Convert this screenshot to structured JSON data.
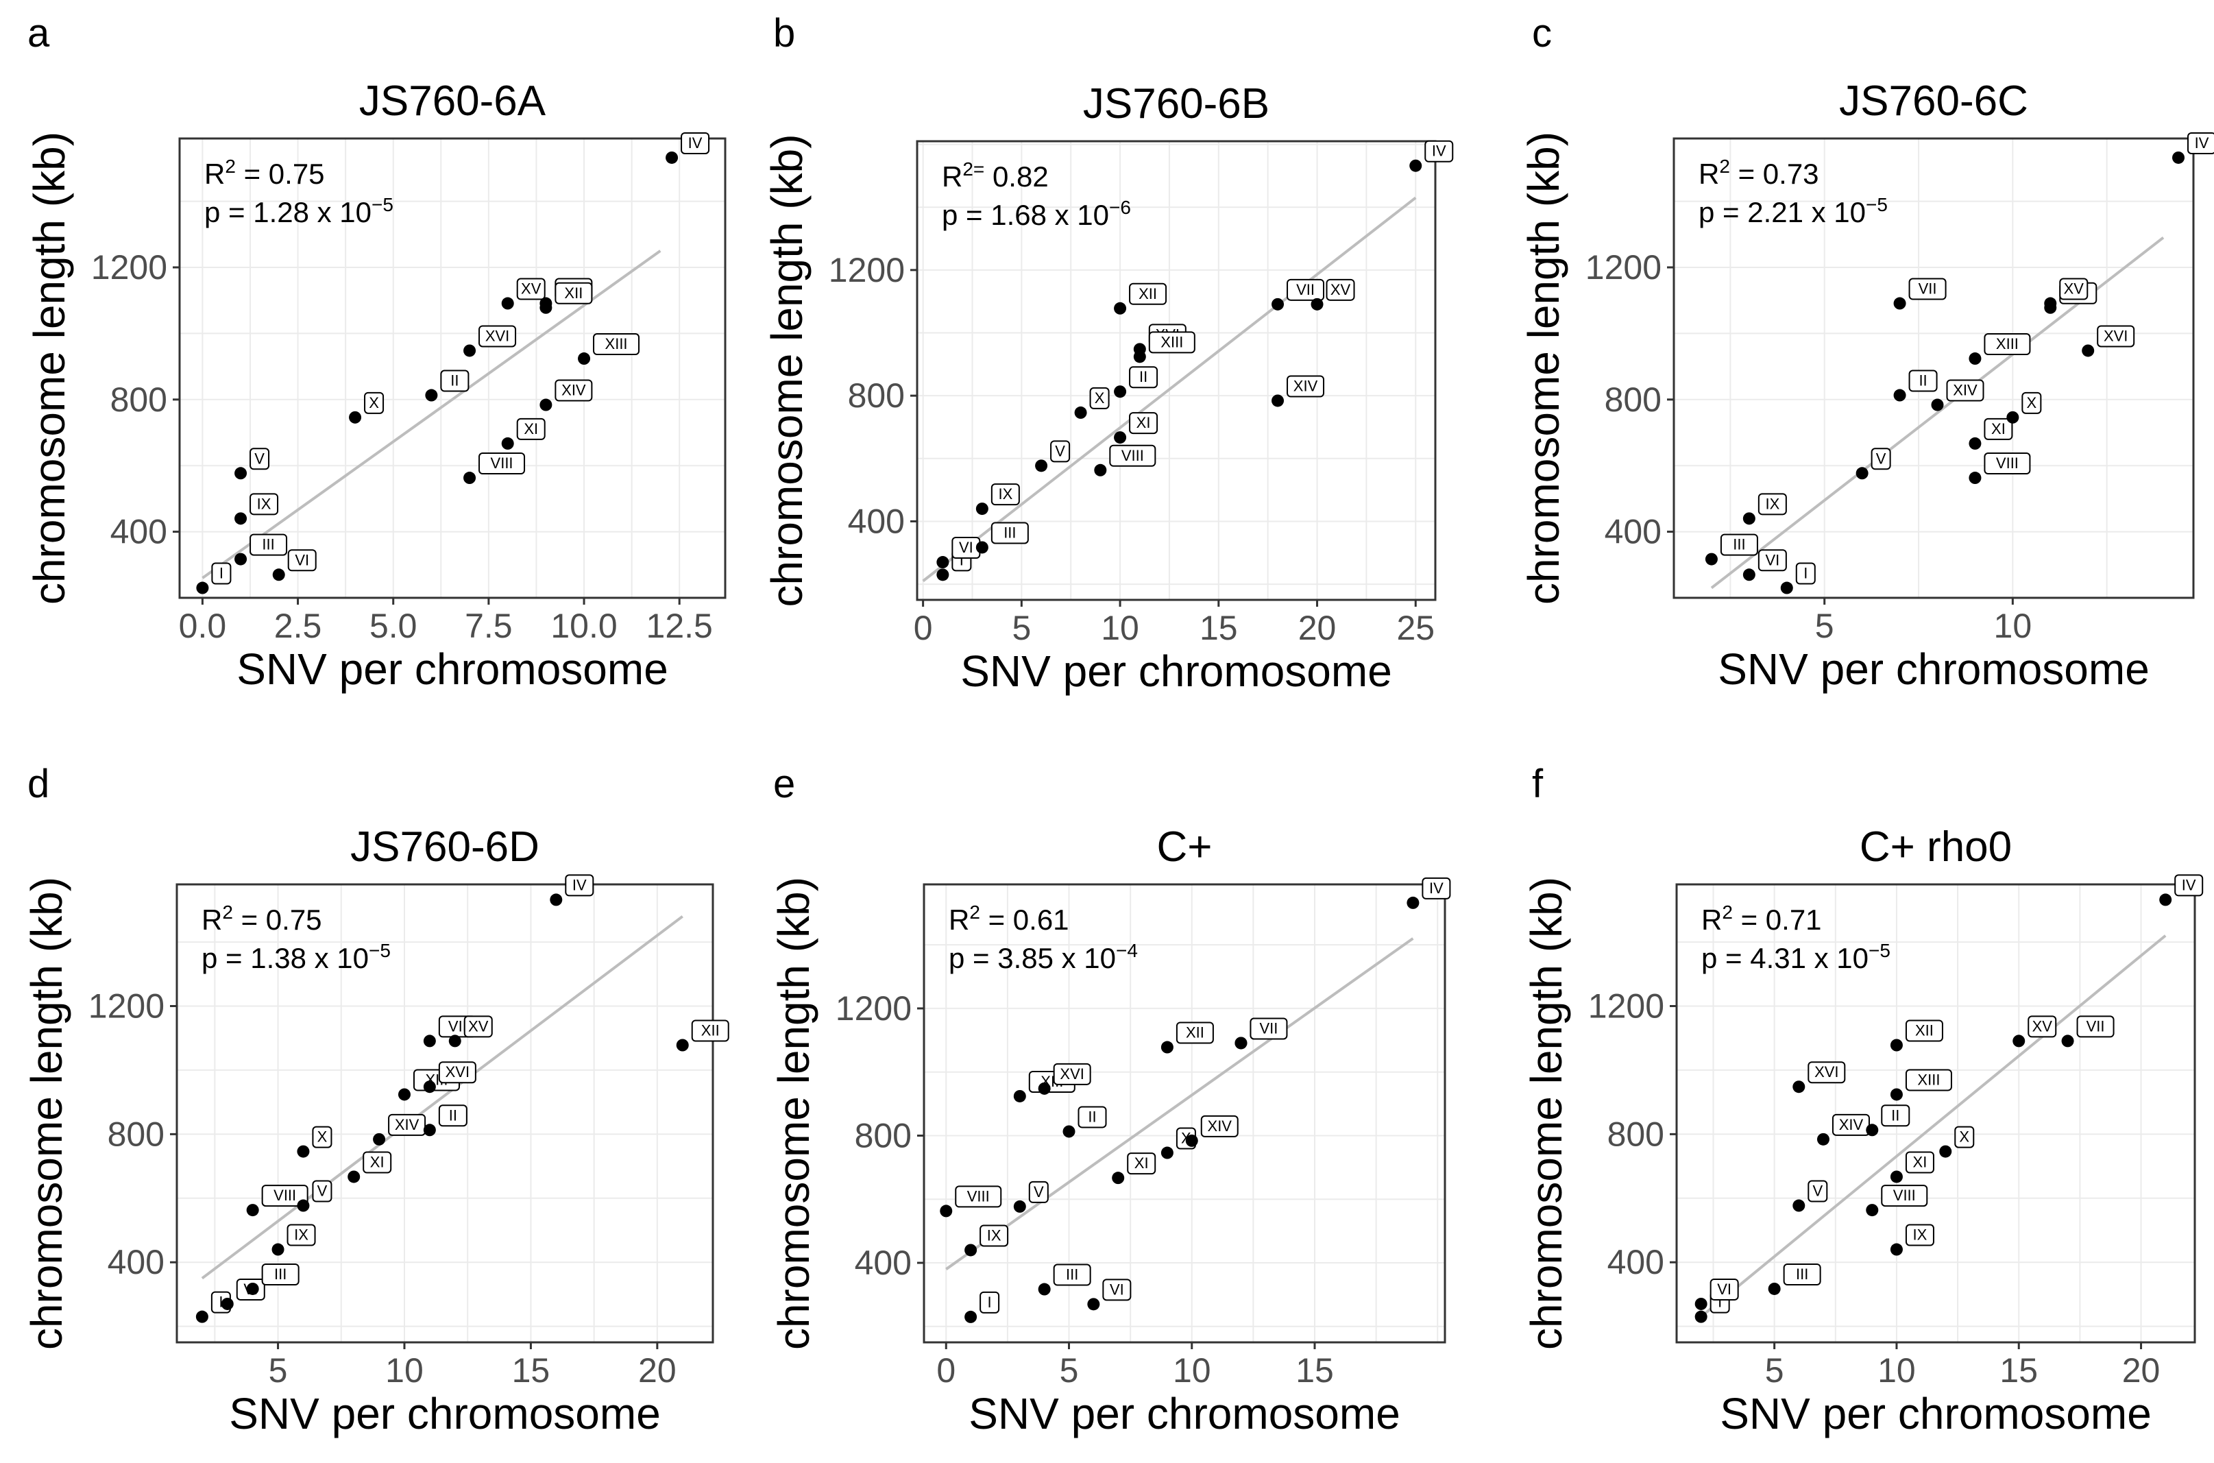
{
  "chart_data": [
    {
      "panel": "a",
      "type": "scatter",
      "title": "JS760-6A",
      "xlabel": "SNV per chromosome",
      "ylabel": "chromosome length (kb)",
      "xlim": [
        -0.6,
        13.7
      ],
      "ylim": [
        200,
        1590
      ],
      "xticks": [
        0,
        2.5,
        5,
        7.5,
        10,
        12.5
      ],
      "xtick_labels": [
        "0.0",
        "2.5",
        "5.0",
        "7.5",
        "10.0",
        "12.5"
      ],
      "yticks": [
        400,
        800,
        1200
      ],
      "ytick_labels": [
        "400",
        "800",
        "1200"
      ],
      "stats": {
        "r2_label": "R",
        "r2_value": "= 0.75",
        "p_label": "p = 1.28 x 10",
        "p_exp": "−5"
      },
      "fit": {
        "x0": 0,
        "y0": 260,
        "x1": 12,
        "y1": 1250
      },
      "points": [
        {
          "label": "I",
          "x": 0,
          "y": 230
        },
        {
          "label": "III",
          "x": 1,
          "y": 317
        },
        {
          "label": "VI",
          "x": 2,
          "y": 270
        },
        {
          "label": "IX",
          "x": 1,
          "y": 440
        },
        {
          "label": "V",
          "x": 1,
          "y": 577
        },
        {
          "label": "X",
          "x": 4,
          "y": 746
        },
        {
          "label": "II",
          "x": 6,
          "y": 813
        },
        {
          "label": "XVI",
          "x": 7,
          "y": 948
        },
        {
          "label": "VIII",
          "x": 7,
          "y": 563
        },
        {
          "label": "XV",
          "x": 8,
          "y": 1091
        },
        {
          "label": "XI",
          "x": 8,
          "y": 667
        },
        {
          "label": "XIV",
          "x": 9,
          "y": 784
        },
        {
          "label": "VII",
          "x": 9,
          "y": 1091
        },
        {
          "label": "XII",
          "x": 9,
          "y": 1078
        },
        {
          "label": "XIII",
          "x": 10,
          "y": 924
        },
        {
          "label": "IV",
          "x": 12.3,
          "y": 1532
        }
      ]
    },
    {
      "panel": "b",
      "type": "scatter",
      "title": "JS760-6B",
      "xlabel": "SNV per chromosome",
      "ylabel": "chromosome length (kb)",
      "xlim": [
        -0.3,
        26
      ],
      "ylim": [
        150,
        1610
      ],
      "xticks": [
        0,
        5,
        10,
        15,
        20,
        25
      ],
      "xtick_labels": [
        "0",
        "5",
        "10",
        "15",
        "20",
        "25"
      ],
      "yticks": [
        400,
        800,
        1200
      ],
      "ytick_labels": [
        "400",
        "800",
        "1200"
      ],
      "stats": {
        "r2_label": "R",
        "r2_value": " 0.82",
        "r2_sup": "2=",
        "p_label": "p = 1.68 x 10",
        "p_exp": "−6"
      },
      "fit": {
        "x0": 0,
        "y0": 210,
        "x1": 25,
        "y1": 1430
      },
      "points": [
        {
          "label": "I",
          "x": 1,
          "y": 230
        },
        {
          "label": "VI",
          "x": 1,
          "y": 270
        },
        {
          "label": "III",
          "x": 3,
          "y": 317
        },
        {
          "label": "IX",
          "x": 3,
          "y": 440
        },
        {
          "label": "V",
          "x": 6,
          "y": 577
        },
        {
          "label": "X",
          "x": 8,
          "y": 746
        },
        {
          "label": "VIII",
          "x": 9,
          "y": 563
        },
        {
          "label": "II",
          "x": 10,
          "y": 813
        },
        {
          "label": "XI",
          "x": 10,
          "y": 667
        },
        {
          "label": "XII",
          "x": 10,
          "y": 1078
        },
        {
          "label": "XVI",
          "x": 11,
          "y": 948
        },
        {
          "label": "XIII",
          "x": 11,
          "y": 924
        },
        {
          "label": "VII",
          "x": 18,
          "y": 1091
        },
        {
          "label": "XIV",
          "x": 18,
          "y": 784
        },
        {
          "label": "XV",
          "x": 20,
          "y": 1091
        },
        {
          "label": "IV",
          "x": 25,
          "y": 1532
        }
      ]
    },
    {
      "panel": "c",
      "type": "scatter",
      "title": "JS760-6C",
      "xlabel": "SNV per chromosome",
      "ylabel": "chromosome length (kb)",
      "xlim": [
        1.0,
        14.8
      ],
      "ylim": [
        200,
        1590
      ],
      "xticks": [
        5,
        10
      ],
      "xtick_labels": [
        "5",
        "10"
      ],
      "yticks": [
        400,
        800,
        1200
      ],
      "ytick_labels": [
        "400",
        "800",
        "1200"
      ],
      "stats": {
        "r2_label": "R",
        "r2_value": "= 0.73",
        "p_label": "p = 2.21 x 10",
        "p_exp": "−5"
      },
      "fit": {
        "x0": 2,
        "y0": 230,
        "x1": 14,
        "y1": 1290
      },
      "points": [
        {
          "label": "III",
          "x": 2,
          "y": 317
        },
        {
          "label": "VI",
          "x": 3,
          "y": 270
        },
        {
          "label": "IX",
          "x": 3,
          "y": 440
        },
        {
          "label": "I",
          "x": 4,
          "y": 230
        },
        {
          "label": "V",
          "x": 6,
          "y": 577
        },
        {
          "label": "VII",
          "x": 7,
          "y": 1091
        },
        {
          "label": "II",
          "x": 7,
          "y": 813
        },
        {
          "label": "XIV",
          "x": 8,
          "y": 784
        },
        {
          "label": "XIII",
          "x": 9,
          "y": 924
        },
        {
          "label": "XI",
          "x": 9,
          "y": 667
        },
        {
          "label": "VIII",
          "x": 9,
          "y": 563
        },
        {
          "label": "X",
          "x": 10,
          "y": 746
        },
        {
          "label": "XII",
          "x": 11,
          "y": 1078
        },
        {
          "label": "XV",
          "x": 11,
          "y": 1091
        },
        {
          "label": "XVI",
          "x": 12,
          "y": 948
        },
        {
          "label": "IV",
          "x": 14.4,
          "y": 1532
        }
      ]
    },
    {
      "panel": "d",
      "type": "scatter",
      "title": "JS760-6D",
      "xlabel": "SNV per chromosome",
      "ylabel": "chromosome length (kb)",
      "xlim": [
        1.0,
        22.2
      ],
      "ylim": [
        150,
        1580
      ],
      "xticks": [
        5,
        10,
        15,
        20
      ],
      "xtick_labels": [
        "5",
        "10",
        "15",
        "20"
      ],
      "yticks": [
        400,
        800,
        1200
      ],
      "ytick_labels": [
        "400",
        "800",
        "1200"
      ],
      "stats": {
        "r2_label": "R",
        "r2_value": "= 0.75",
        "p_label": "p = 1.38 x 10",
        "p_exp": "−5"
      },
      "fit": {
        "x0": 2,
        "y0": 350,
        "x1": 21,
        "y1": 1480
      },
      "points": [
        {
          "label": "I",
          "x": 2,
          "y": 230
        },
        {
          "label": "VI",
          "x": 3,
          "y": 270
        },
        {
          "label": "III",
          "x": 4,
          "y": 317
        },
        {
          "label": "VIII",
          "x": 4,
          "y": 563
        },
        {
          "label": "IX",
          "x": 5,
          "y": 440
        },
        {
          "label": "V",
          "x": 6,
          "y": 577
        },
        {
          "label": "X",
          "x": 6,
          "y": 746
        },
        {
          "label": "XIV",
          "x": 9,
          "y": 784
        },
        {
          "label": "XI",
          "x": 8,
          "y": 667
        },
        {
          "label": "XIII",
          "x": 10,
          "y": 924
        },
        {
          "label": "II",
          "x": 11,
          "y": 813
        },
        {
          "label": "XVI",
          "x": 11,
          "y": 948
        },
        {
          "label": "VII",
          "x": 11,
          "y": 1091
        },
        {
          "label": "XV",
          "x": 12,
          "y": 1091
        },
        {
          "label": "IV",
          "x": 16,
          "y": 1532
        },
        {
          "label": "XII",
          "x": 21,
          "y": 1078
        }
      ]
    },
    {
      "panel": "e",
      "type": "scatter",
      "title": "C+",
      "xlabel": "SNV per chromosome",
      "ylabel": "chromosome length (kb)",
      "xlim": [
        -0.9,
        20.3
      ],
      "ylim": [
        150,
        1590
      ],
      "xticks": [
        0,
        5,
        10,
        15
      ],
      "xtick_labels": [
        "0",
        "5",
        "10",
        "15"
      ],
      "yticks": [
        400,
        800,
        1200
      ],
      "ytick_labels": [
        "400",
        "800",
        "1200"
      ],
      "stats": {
        "r2_label": "R",
        "r2_value": "= 0.61",
        "p_label": "p = 3.85 x 10",
        "p_exp": "−4"
      },
      "fit": {
        "x0": 0,
        "y0": 380,
        "x1": 19,
        "y1": 1420
      },
      "points": [
        {
          "label": "VIII",
          "x": 0,
          "y": 563
        },
        {
          "label": "I",
          "x": 1,
          "y": 230
        },
        {
          "label": "IX",
          "x": 1,
          "y": 440
        },
        {
          "label": "V",
          "x": 3,
          "y": 577
        },
        {
          "label": "XIII",
          "x": 3,
          "y": 924
        },
        {
          "label": "III",
          "x": 4,
          "y": 317
        },
        {
          "label": "XVI",
          "x": 4,
          "y": 948
        },
        {
          "label": "II",
          "x": 5,
          "y": 813
        },
        {
          "label": "VI",
          "x": 6,
          "y": 270
        },
        {
          "label": "XI",
          "x": 7,
          "y": 667
        },
        {
          "label": "X",
          "x": 9,
          "y": 746
        },
        {
          "label": "XII",
          "x": 9,
          "y": 1078
        },
        {
          "label": "XIV",
          "x": 10,
          "y": 784
        },
        {
          "label": "XV",
          "x": 12,
          "y": 1091
        },
        {
          "label": "VII",
          "x": 12,
          "y": 1091
        },
        {
          "label": "IV",
          "x": 19,
          "y": 1532
        }
      ]
    },
    {
      "panel": "f",
      "type": "scatter",
      "title": "C+ rho0",
      "xlabel": "SNV per chromosome",
      "ylabel": "chromosome length (kb)",
      "xlim": [
        1.0,
        22.2
      ],
      "ylim": [
        150,
        1580
      ],
      "xticks": [
        5,
        10,
        15,
        20
      ],
      "xtick_labels": [
        "5",
        "10",
        "15",
        "20"
      ],
      "yticks": [
        400,
        800,
        1200
      ],
      "ytick_labels": [
        "400",
        "800",
        "1200"
      ],
      "stats": {
        "r2_label": "R",
        "r2_value": "= 0.71",
        "p_label": "p = 4.31 x 10",
        "p_exp": "−5"
      },
      "fit": {
        "x0": 2,
        "y0": 230,
        "x1": 21,
        "y1": 1420
      },
      "points": [
        {
          "label": "I",
          "x": 2,
          "y": 230
        },
        {
          "label": "VI",
          "x": 2,
          "y": 270
        },
        {
          "label": "III",
          "x": 5,
          "y": 317
        },
        {
          "label": "V",
          "x": 6,
          "y": 577
        },
        {
          "label": "XVI",
          "x": 6,
          "y": 948
        },
        {
          "label": "XIV",
          "x": 7,
          "y": 784
        },
        {
          "label": "II",
          "x": 9,
          "y": 813
        },
        {
          "label": "VIII",
          "x": 9,
          "y": 563
        },
        {
          "label": "IX",
          "x": 10,
          "y": 440
        },
        {
          "label": "XI",
          "x": 10,
          "y": 667
        },
        {
          "label": "XIII",
          "x": 10,
          "y": 924
        },
        {
          "label": "XII",
          "x": 10,
          "y": 1078
        },
        {
          "label": "X",
          "x": 12,
          "y": 746
        },
        {
          "label": "XV",
          "x": 15,
          "y": 1091
        },
        {
          "label": "VII",
          "x": 17,
          "y": 1091
        },
        {
          "label": "IV",
          "x": 21,
          "y": 1532
        }
      ]
    }
  ]
}
